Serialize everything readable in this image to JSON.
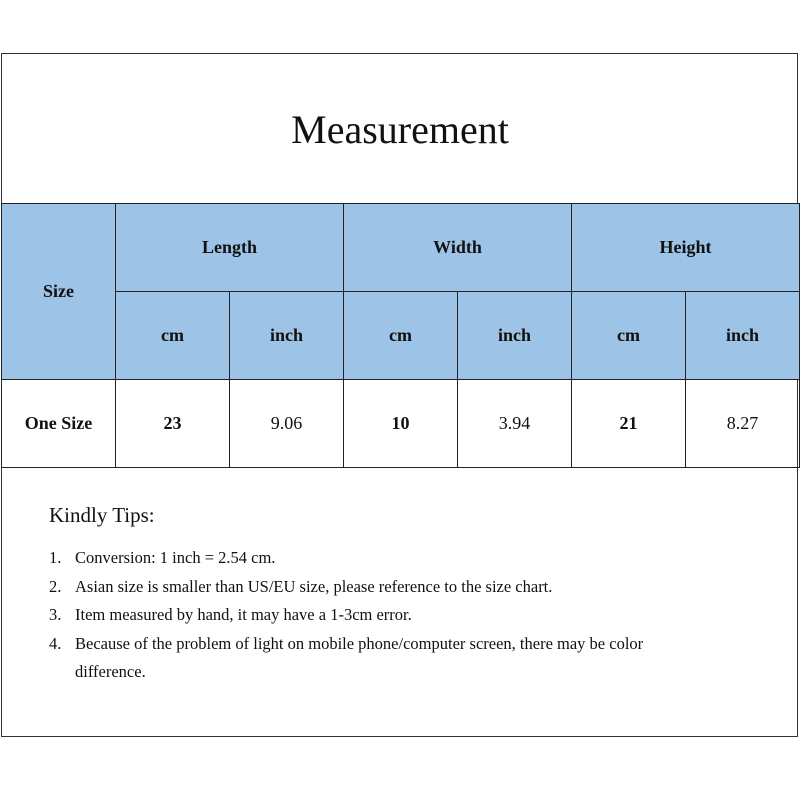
{
  "title": "Measurement",
  "table": {
    "size_header": "Size",
    "groups": [
      "Length",
      "Width",
      "Height"
    ],
    "units": [
      "cm",
      "inch",
      "cm",
      "inch",
      "cm",
      "inch"
    ],
    "rows": [
      {
        "size": "One Size",
        "values": [
          "23",
          "9.06",
          "10",
          "3.94",
          "21",
          "8.27"
        ]
      }
    ]
  },
  "tips": {
    "heading": "Kindly Tips:",
    "items": [
      {
        "num": "1.",
        "text": "Conversion: 1 inch = 2.54 cm."
      },
      {
        "num": "2.",
        "text": "Asian size is smaller than US/EU size, please reference to the size chart."
      },
      {
        "num": "3.",
        "text": "Item measured by hand, it may have a 1-3cm error."
      },
      {
        "num": "4.",
        "text": "Because of the problem of light on mobile phone/computer screen, there may be color difference."
      }
    ]
  },
  "colors": {
    "header_bg": "#9dc3e6"
  }
}
